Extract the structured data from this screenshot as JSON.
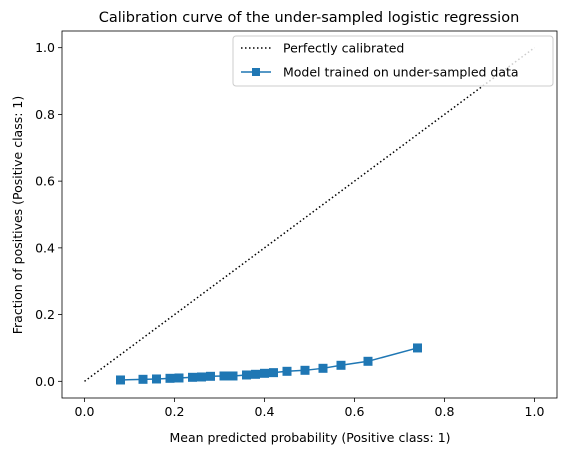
{
  "chart_data": {
    "type": "line",
    "title": "Calibration curve of the under-sampled logistic regression",
    "xlabel": "Mean predicted probability (Positive class: 1)",
    "ylabel": "Fraction of positives (Positive class: 1)",
    "xlim": [
      -0.05,
      1.05
    ],
    "ylim": [
      -0.05,
      1.05
    ],
    "xticks": [
      0.0,
      0.2,
      0.4,
      0.6,
      0.8,
      1.0
    ],
    "yticks": [
      0.0,
      0.2,
      0.4,
      0.6,
      0.8,
      1.0
    ],
    "xtick_labels": [
      "0.0",
      "0.2",
      "0.4",
      "0.6",
      "0.8",
      "1.0"
    ],
    "ytick_labels": [
      "0.0",
      "0.2",
      "0.4",
      "0.6",
      "0.8",
      "1.0"
    ],
    "grid": false,
    "legend_position": "top-right",
    "series": [
      {
        "name": "Perfectly calibrated",
        "style": "dotted",
        "color": "#000000",
        "marker": "none",
        "x": [
          0.0,
          1.0
        ],
        "y": [
          0.0,
          1.0
        ]
      },
      {
        "name": "Model trained on under-sampled data",
        "style": "solid",
        "color": "#1f77b4",
        "marker": "square",
        "x": [
          0.08,
          0.13,
          0.16,
          0.19,
          0.21,
          0.24,
          0.26,
          0.28,
          0.31,
          0.33,
          0.36,
          0.38,
          0.4,
          0.42,
          0.45,
          0.49,
          0.53,
          0.57,
          0.63,
          0.74
        ],
        "y": [
          0.004,
          0.006,
          0.007,
          0.009,
          0.01,
          0.012,
          0.013,
          0.015,
          0.016,
          0.016,
          0.019,
          0.021,
          0.024,
          0.026,
          0.03,
          0.033,
          0.039,
          0.048,
          0.06,
          0.1
        ]
      }
    ]
  }
}
